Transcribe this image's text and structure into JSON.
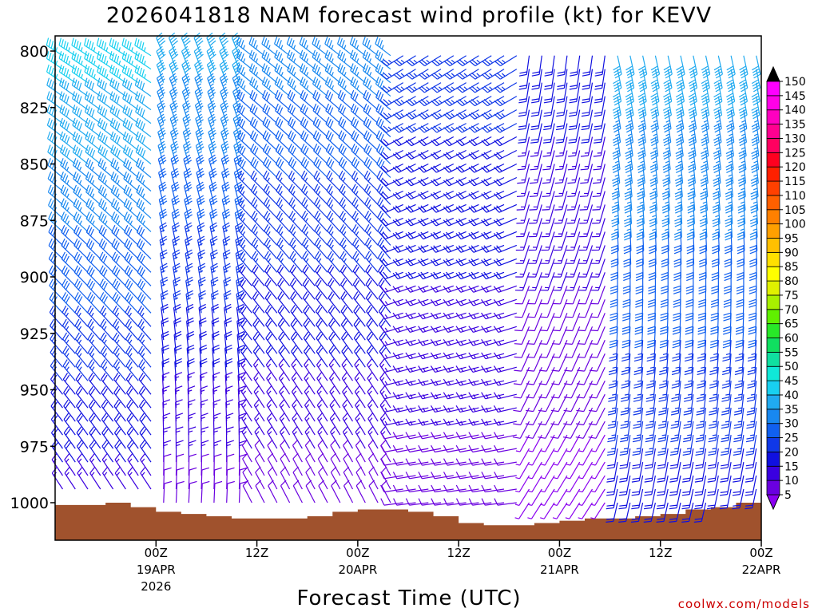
{
  "chart_data": {
    "type": "wind-barb-time-height",
    "title": "2026041818 NAM forecast wind profile (kt) for KEVV",
    "xlabel": "Forecast Time (UTC)",
    "ylabel": "",
    "credit": "coolwx.com/models",
    "y_axis": {
      "reversed": true,
      "ylim": [
        800,
        1020
      ],
      "ticks": [
        "800",
        "825",
        "850",
        "875",
        "900",
        "925",
        "950",
        "975",
        "1000"
      ],
      "tick_values": [
        800,
        825,
        850,
        875,
        900,
        925,
        950,
        975,
        1000
      ]
    },
    "x_axis": {
      "xlim_hours_from_init": [
        -6,
        78
      ],
      "ticks": [
        {
          "hour": 6,
          "time": "00Z",
          "date": "19APR",
          "year": "2026"
        },
        {
          "hour": 18,
          "time": "12Z",
          "date": "",
          "year": ""
        },
        {
          "hour": 30,
          "time": "00Z",
          "date": "20APR",
          "year": ""
        },
        {
          "hour": 42,
          "time": "12Z",
          "date": "",
          "year": ""
        },
        {
          "hour": 54,
          "time": "00Z",
          "date": "21APR",
          "year": ""
        },
        {
          "hour": 66,
          "time": "12Z",
          "date": "",
          "year": ""
        },
        {
          "hour": 78,
          "time": "00Z",
          "date": "22APR",
          "year": ""
        }
      ]
    },
    "colorbar": {
      "units": "kt",
      "labels": [
        "5",
        "10",
        "15",
        "20",
        "25",
        "30",
        "35",
        "40",
        "45",
        "50",
        "55",
        "60",
        "65",
        "70",
        "75",
        "80",
        "85",
        "90",
        "95",
        "100",
        "105",
        "110",
        "115",
        "120",
        "125",
        "130",
        "135",
        "140",
        "145",
        "150"
      ],
      "colors": [
        "#8a00f0",
        "#6a00e0",
        "#3a00e0",
        "#1010e0",
        "#1038e8",
        "#1060f0",
        "#1888f0",
        "#20aaf0",
        "#18d0f0",
        "#10e8d8",
        "#10e0a0",
        "#10e060",
        "#28e828",
        "#60f000",
        "#a8f000",
        "#e0f000",
        "#ffff00",
        "#ffe000",
        "#ffc000",
        "#ffa000",
        "#ff8000",
        "#ff6000",
        "#ff4000",
        "#ff2000",
        "#ff0020",
        "#ff0060",
        "#ff0090",
        "#ff00c0",
        "#ff00e8",
        "#ff00ff"
      ],
      "extend_low_color": "#8a00f0",
      "extend_high_color": "#000000"
    },
    "ground_color": "#a0522d",
    "surface_pressure": [
      {
        "hour": -6,
        "p": 1001
      },
      {
        "hour": 0,
        "p": 1000
      },
      {
        "hour": 3,
        "p": 1002
      },
      {
        "hour": 6,
        "p": 1004
      },
      {
        "hour": 9,
        "p": 1005
      },
      {
        "hour": 12,
        "p": 1006
      },
      {
        "hour": 15,
        "p": 1007
      },
      {
        "hour": 18,
        "p": 1007
      },
      {
        "hour": 21,
        "p": 1007
      },
      {
        "hour": 24,
        "p": 1006
      },
      {
        "hour": 27,
        "p": 1004
      },
      {
        "hour": 30,
        "p": 1003
      },
      {
        "hour": 33,
        "p": 1003
      },
      {
        "hour": 36,
        "p": 1004
      },
      {
        "hour": 39,
        "p": 1006
      },
      {
        "hour": 42,
        "p": 1009
      },
      {
        "hour": 45,
        "p": 1010
      },
      {
        "hour": 48,
        "p": 1010
      },
      {
        "hour": 51,
        "p": 1009
      },
      {
        "hour": 54,
        "p": 1008
      },
      {
        "hour": 57,
        "p": 1007
      },
      {
        "hour": 60,
        "p": 1007
      },
      {
        "hour": 63,
        "p": 1006
      },
      {
        "hour": 66,
        "p": 1005
      },
      {
        "hour": 69,
        "p": 1003
      },
      {
        "hour": 72,
        "p": 1002
      },
      {
        "hour": 75,
        "p": 1000
      },
      {
        "hour": 78,
        "p": 1000
      }
    ],
    "wind_time_step_hours": 1.5,
    "wind_levels": [
      802,
      808,
      814,
      820,
      826,
      832,
      838,
      844,
      850,
      856,
      862,
      868,
      874,
      880,
      886,
      892,
      898,
      904,
      910,
      916,
      922,
      928,
      934,
      940,
      946,
      952,
      958,
      964,
      970,
      976,
      982,
      988,
      994,
      1000
    ],
    "wind_regimes": [
      {
        "hours": [
          -6,
          6
        ],
        "dir": 315,
        "speed_top": 45,
        "speed_bottom": 15
      },
      {
        "hours": [
          6,
          16
        ],
        "dir": 350,
        "speed_top": 40,
        "speed_bottom": 10
      },
      {
        "hours": [
          16,
          34
        ],
        "dir": 320,
        "speed_top": 35,
        "speed_bottom": 10
      },
      {
        "hours": [
          34,
          50
        ],
        "dir": 250,
        "speed_top": 25,
        "speed_bottom": 10
      },
      {
        "hours": [
          50,
          60
        ],
        "dir": 200,
        "speed_top": 20,
        "speed_bottom": 5
      },
      {
        "hours": [
          60,
          78
        ],
        "dir": 180,
        "speed_top": 40,
        "speed_bottom": 20
      }
    ]
  }
}
